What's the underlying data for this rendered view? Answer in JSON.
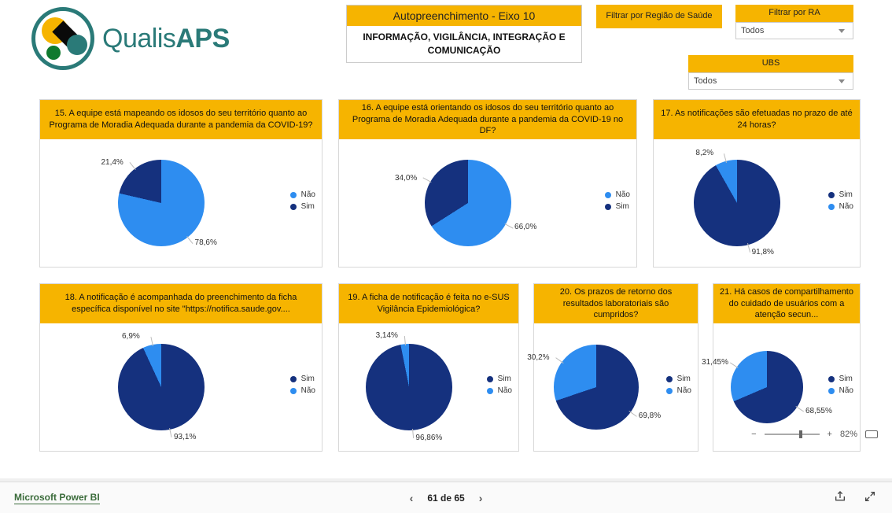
{
  "logo": {
    "name": "QualisAPS",
    "light": "Qualis",
    "bold": "APS"
  },
  "banner": {
    "title": "Autopreenchimento - Eixo 10",
    "subtitle": "INFORMAÇÃO, VIGILÂNCIA, INTEGRAÇÃO E COMUNICAÇÃO"
  },
  "filters": {
    "regiao": {
      "label": "Filtrar por Região de Saúde",
      "value": ""
    },
    "ra": {
      "label": "Filtrar por RA",
      "value": "Todos"
    },
    "ubs": {
      "label": "UBS",
      "value": "Todos"
    }
  },
  "colors": {
    "yellow": "#f6b400",
    "blue_light": "#2e8df0",
    "blue_dark": "#15317e"
  },
  "zoom": {
    "level": "82%",
    "minus": "−",
    "plus": "+"
  },
  "pager": {
    "label": "61 de 65"
  },
  "footer_brand": "Microsoft Power BI",
  "cards": [
    {
      "id": "c15",
      "title": "15. A equipe está mapeando os idosos do seu território quanto ao Programa de Moradia Adequada durante a pandemia da COVID-19?",
      "type": "pie",
      "slices": [
        {
          "label": "Não",
          "pct": 78.6,
          "color": "#2e8df0",
          "text": "78,6%"
        },
        {
          "label": "Sim",
          "pct": 21.4,
          "color": "#15317e",
          "text": "21,4%"
        }
      ],
      "legend_order": [
        "Não",
        "Sim"
      ]
    },
    {
      "id": "c16",
      "title": "16. A equipe está orientando os idosos do seu território quanto ao Programa de Moradia Adequada durante a pandemia da COVID-19 no DF?",
      "type": "pie",
      "slices": [
        {
          "label": "Não",
          "pct": 66.0,
          "color": "#2e8df0",
          "text": "66,0%"
        },
        {
          "label": "Sim",
          "pct": 34.0,
          "color": "#15317e",
          "text": "34,0%"
        }
      ],
      "legend_order": [
        "Não",
        "Sim"
      ]
    },
    {
      "id": "c17",
      "title": "17. As notificações são efetuadas no prazo de até 24 horas?",
      "type": "pie",
      "slices": [
        {
          "label": "Sim",
          "pct": 91.8,
          "color": "#15317e",
          "text": "91,8%"
        },
        {
          "label": "Não",
          "pct": 8.2,
          "color": "#2e8df0",
          "text": "8,2%"
        }
      ],
      "legend_order": [
        "Sim",
        "Não"
      ]
    },
    {
      "id": "c18",
      "title": "18. A notificação é acompanhada do preenchimento da ficha específica disponível no site \"https://notifica.saude.gov....",
      "type": "pie",
      "slices": [
        {
          "label": "Sim",
          "pct": 93.1,
          "color": "#15317e",
          "text": "93,1%"
        },
        {
          "label": "Não",
          "pct": 6.9,
          "color": "#2e8df0",
          "text": "6,9%"
        }
      ],
      "legend_order": [
        "Sim",
        "Não"
      ]
    },
    {
      "id": "c19",
      "title": "19. A ficha de notificação é feita no e-SUS Vigilância Epidemiológica?",
      "type": "pie",
      "slices": [
        {
          "label": "Sim",
          "pct": 96.86,
          "color": "#15317e",
          "text": "96,86%"
        },
        {
          "label": "Não",
          "pct": 3.14,
          "color": "#2e8df0",
          "text": "3,14%"
        }
      ],
      "legend_order": [
        "Sim",
        "Não"
      ]
    },
    {
      "id": "c20",
      "title": "20. Os prazos de retorno dos resultados laboratoriais são cumpridos?",
      "type": "pie",
      "slices": [
        {
          "label": "Sim",
          "pct": 69.8,
          "color": "#15317e",
          "text": "69,8%"
        },
        {
          "label": "Não",
          "pct": 30.2,
          "color": "#2e8df0",
          "text": "30,2%"
        }
      ],
      "legend_order": [
        "Sim",
        "Não"
      ]
    },
    {
      "id": "c21",
      "title": "21. Há casos de compartilhamento do cuidado de usuários com a atenção secun...",
      "type": "pie",
      "slices": [
        {
          "label": "Sim",
          "pct": 68.55,
          "color": "#15317e",
          "text": "68,55%"
        },
        {
          "label": "Não",
          "pct": 31.45,
          "color": "#2e8df0",
          "text": "31,45%"
        }
      ],
      "legend_order": [
        "Sim",
        "Não"
      ]
    }
  ]
}
